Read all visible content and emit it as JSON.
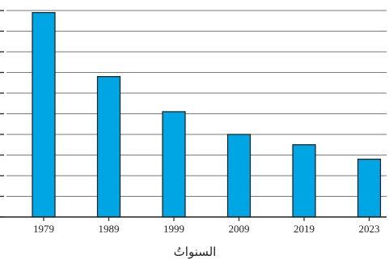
{
  "chart_data": {
    "type": "bar",
    "categories": [
      "1979",
      "1989",
      "1999",
      "2009",
      "2019",
      "2023"
    ],
    "values": [
      9.9,
      6.8,
      5.1,
      4.0,
      3.5,
      2.8
    ],
    "title": "",
    "xlabel": "السنواتُ",
    "ylabel": "",
    "ylim": [
      0,
      10
    ],
    "grid": true,
    "legend": "none",
    "bar_color": "#00A6E4",
    "bar_edge_color": "#1A1A1A",
    "grid_color": "#7A7A7A",
    "axis_color": "#222222"
  }
}
